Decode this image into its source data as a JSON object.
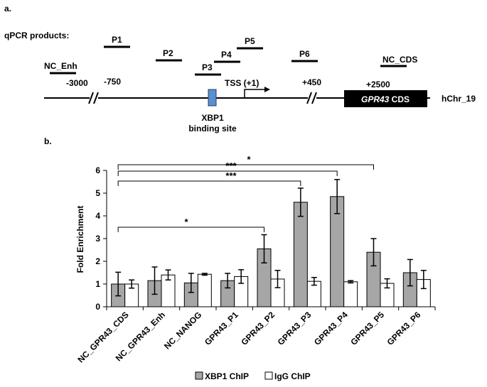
{
  "panel_a": {
    "label": "a.",
    "header": "qPCR products:",
    "primers": [
      "P1",
      "P2",
      "P3",
      "P4",
      "P5",
      "P6",
      "NC_Enh",
      "NC_CDS"
    ],
    "positions": [
      "-3000",
      "-750",
      "+450",
      "+2500"
    ],
    "tss": "TSS (+1)",
    "site_line1": "XBP1",
    "site_line2": "binding site",
    "cds_gene": "GPR43",
    "cds_suffix": " CDS",
    "chromosome": "hChr_19",
    "colors": {
      "binding_site": "#5b8fd0",
      "cds_box": "#000000"
    }
  },
  "chart_data": {
    "panel_label": "b.",
    "type": "bar",
    "title": "",
    "xlabel": "",
    "ylabel": "Fold Enrichment",
    "ylim": [
      0,
      6
    ],
    "yticks": [
      0,
      1,
      2,
      3,
      4,
      5,
      6
    ],
    "categories": [
      "NC_GPR43_CDS",
      "NC_GPR43_Enh",
      "NC_NANOG",
      "GPR43_P1",
      "GPR43_P2",
      "GPR43_P3",
      "GPR43_P4",
      "GPR43_P5",
      "GPR43_P6"
    ],
    "series": [
      {
        "name": "XBP1 ChIP",
        "color": "#a6a6a6",
        "values": [
          1.0,
          1.15,
          1.05,
          1.15,
          2.55,
          4.6,
          4.85,
          2.4,
          1.5
        ],
        "errors": [
          0.52,
          0.6,
          0.42,
          0.32,
          0.62,
          0.62,
          0.75,
          0.6,
          0.58
        ]
      },
      {
        "name": "IgG ChIP",
        "color": "#ffffff",
        "values": [
          1.0,
          1.4,
          1.43,
          1.33,
          1.22,
          1.12,
          1.1,
          1.03,
          1.2
        ],
        "errors": [
          0.18,
          0.22,
          0.04,
          0.3,
          0.38,
          0.17,
          0.05,
          0.2,
          0.4
        ]
      }
    ],
    "significance": [
      {
        "from": "NC_GPR43_CDS",
        "to": "GPR43_P2",
        "label": "*"
      },
      {
        "from": "NC_GPR43_CDS",
        "to": "GPR43_P3",
        "label": "***"
      },
      {
        "from": "NC_GPR43_CDS",
        "to": "GPR43_P4",
        "label": "***"
      },
      {
        "from": "NC_GPR43_CDS",
        "to": "GPR43_P5",
        "label": "*"
      }
    ],
    "legend": [
      "XBP1 ChIP",
      "IgG ChIP"
    ],
    "legend_position": "bottom",
    "grid": false
  }
}
